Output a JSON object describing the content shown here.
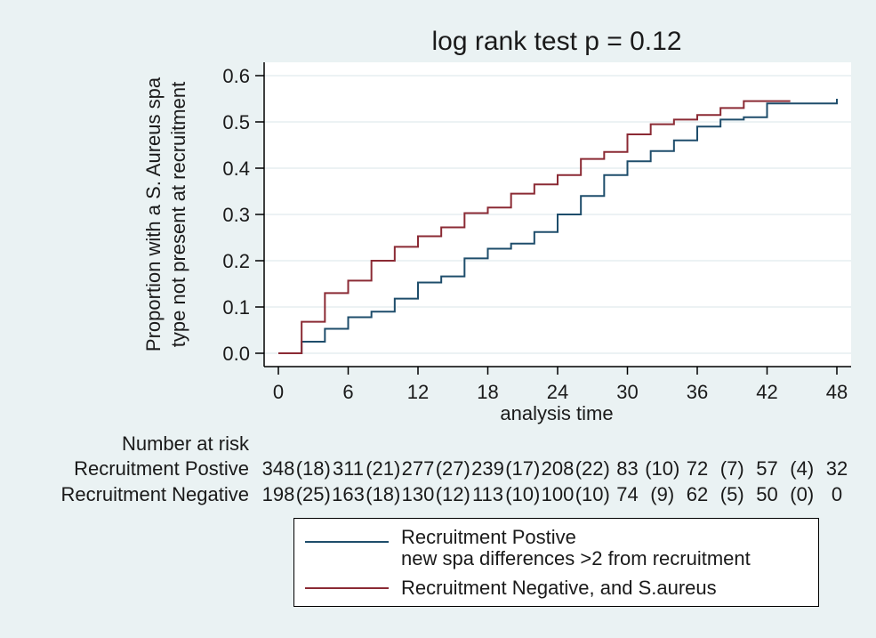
{
  "chart_data": {
    "type": "line",
    "title": "log rank test p = 0.12",
    "ylabel_lines": [
      "Proportion with a S. Aureus spa",
      "type not present at recruitment"
    ],
    "xlabel": "analysis time",
    "xlim": [
      0,
      48
    ],
    "ylim": [
      0,
      0.6
    ],
    "xticks": [
      "0",
      "6",
      "12",
      "18",
      "24",
      "30",
      "36",
      "42",
      "48"
    ],
    "yticks": [
      "0.0",
      "0.1",
      "0.2",
      "0.3",
      "0.4",
      "0.5",
      "0.6"
    ],
    "grid": "horizontal",
    "series": [
      {
        "name": "Recruitment Postive",
        "name_line2": "new spa differences >2 from recruitment",
        "color": "#1e4d6b",
        "step": true,
        "x": [
          0,
          2,
          4,
          6,
          8,
          10,
          12,
          14,
          16,
          18,
          20,
          22,
          24,
          26,
          28,
          30,
          32,
          34,
          36,
          38,
          40,
          42,
          48,
          48
        ],
        "y": [
          0,
          0.025,
          0.053,
          0.078,
          0.09,
          0.118,
          0.153,
          0.166,
          0.205,
          0.226,
          0.237,
          0.262,
          0.3,
          0.34,
          0.385,
          0.415,
          0.437,
          0.46,
          0.49,
          0.505,
          0.51,
          0.54,
          0.54,
          0.55
        ]
      },
      {
        "name": "Recruitment Negative, and S.aureus",
        "color": "#8b2a34",
        "step": true,
        "x": [
          0,
          2,
          4,
          6,
          8,
          10,
          12,
          14,
          16,
          18,
          20,
          22,
          24,
          26,
          28,
          30,
          32,
          34,
          36,
          38,
          40,
          44
        ],
        "y": [
          0,
          0.068,
          0.13,
          0.157,
          0.2,
          0.23,
          0.253,
          0.272,
          0.303,
          0.315,
          0.345,
          0.365,
          0.385,
          0.42,
          0.435,
          0.473,
          0.495,
          0.505,
          0.515,
          0.53,
          0.545,
          0.545
        ]
      }
    ]
  },
  "risk_table": {
    "header": "Number at risk",
    "rows": [
      {
        "label": "Recruitment Postive",
        "entries": [
          "348",
          "(18)",
          "311",
          "(21)",
          "277",
          "(27)",
          "239",
          "(17)",
          "208",
          "(22)",
          "83",
          "(10)",
          "72",
          "(7)",
          "57",
          "(4)",
          "32"
        ]
      },
      {
        "label": "Recruitment Negative",
        "entries": [
          "198",
          "(25)",
          "163",
          "(18)",
          "130",
          "(12)",
          "113",
          "(10)",
          "100",
          "(10)",
          "74",
          "(9)",
          "62",
          "(5)",
          "50",
          "(0)",
          "0"
        ]
      }
    ]
  },
  "legend": {
    "item1_line1": "Recruitment Postive",
    "item1_line2": "new spa differences >2 from recruitment",
    "item2": "Recruitment Negative, and S.aureus"
  }
}
